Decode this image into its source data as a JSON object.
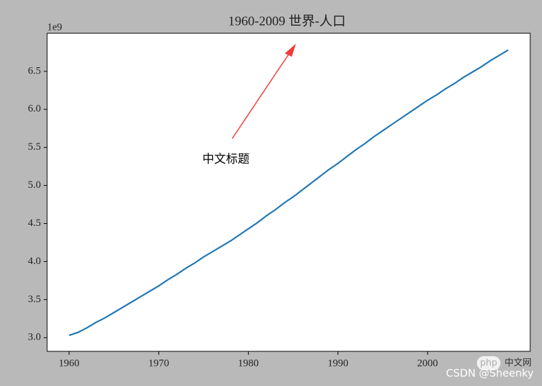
{
  "chart_data": {
    "type": "line",
    "title": "1960-2009 世界-人口",
    "y_offset_label": "1e9",
    "annotation": "中文标题",
    "watermark": {
      "logo": "php",
      "site": "中文网",
      "credit": "CSDN @Sheenky"
    },
    "color": "#1f77b4",
    "x": [
      1960,
      1961,
      1962,
      1963,
      1964,
      1965,
      1966,
      1967,
      1968,
      1969,
      1970,
      1971,
      1972,
      1973,
      1974,
      1975,
      1976,
      1977,
      1978,
      1979,
      1980,
      1981,
      1982,
      1983,
      1984,
      1985,
      1986,
      1987,
      1988,
      1989,
      1990,
      1991,
      1992,
      1993,
      1994,
      1995,
      1996,
      1997,
      1998,
      1999,
      2000,
      2001,
      2002,
      2003,
      2004,
      2005,
      2006,
      2007,
      2008,
      2009
    ],
    "values": [
      3.03,
      3.07,
      3.13,
      3.2,
      3.26,
      3.33,
      3.4,
      3.47,
      3.54,
      3.61,
      3.68,
      3.76,
      3.83,
      3.91,
      3.98,
      4.06,
      4.13,
      4.2,
      4.27,
      4.35,
      4.43,
      4.51,
      4.6,
      4.68,
      4.77,
      4.85,
      4.94,
      5.03,
      5.12,
      5.21,
      5.29,
      5.38,
      5.47,
      5.55,
      5.64,
      5.72,
      5.8,
      5.88,
      5.96,
      6.04,
      6.12,
      6.19,
      6.27,
      6.34,
      6.42,
      6.49,
      6.56,
      6.64,
      6.71,
      6.78
    ],
    "xlim": [
      1957.55,
      2011.45
    ],
    "xticks": [
      1960,
      1970,
      1980,
      1990,
      2000
    ],
    "ylim": [
      2.82,
      7.0
    ],
    "yticks": [
      {
        "value": 3,
        "label": "3.0"
      },
      {
        "value": 3.5,
        "label": "3.5"
      },
      {
        "value": 4,
        "label": "4.0"
      },
      {
        "value": 4.5,
        "label": "4.5"
      },
      {
        "value": 5,
        "label": "5.0"
      },
      {
        "value": 5.5,
        "label": "5.5"
      },
      {
        "value": 6,
        "label": "6.0"
      },
      {
        "value": 6.5,
        "label": "6.5"
      }
    ],
    "grid": false
  }
}
